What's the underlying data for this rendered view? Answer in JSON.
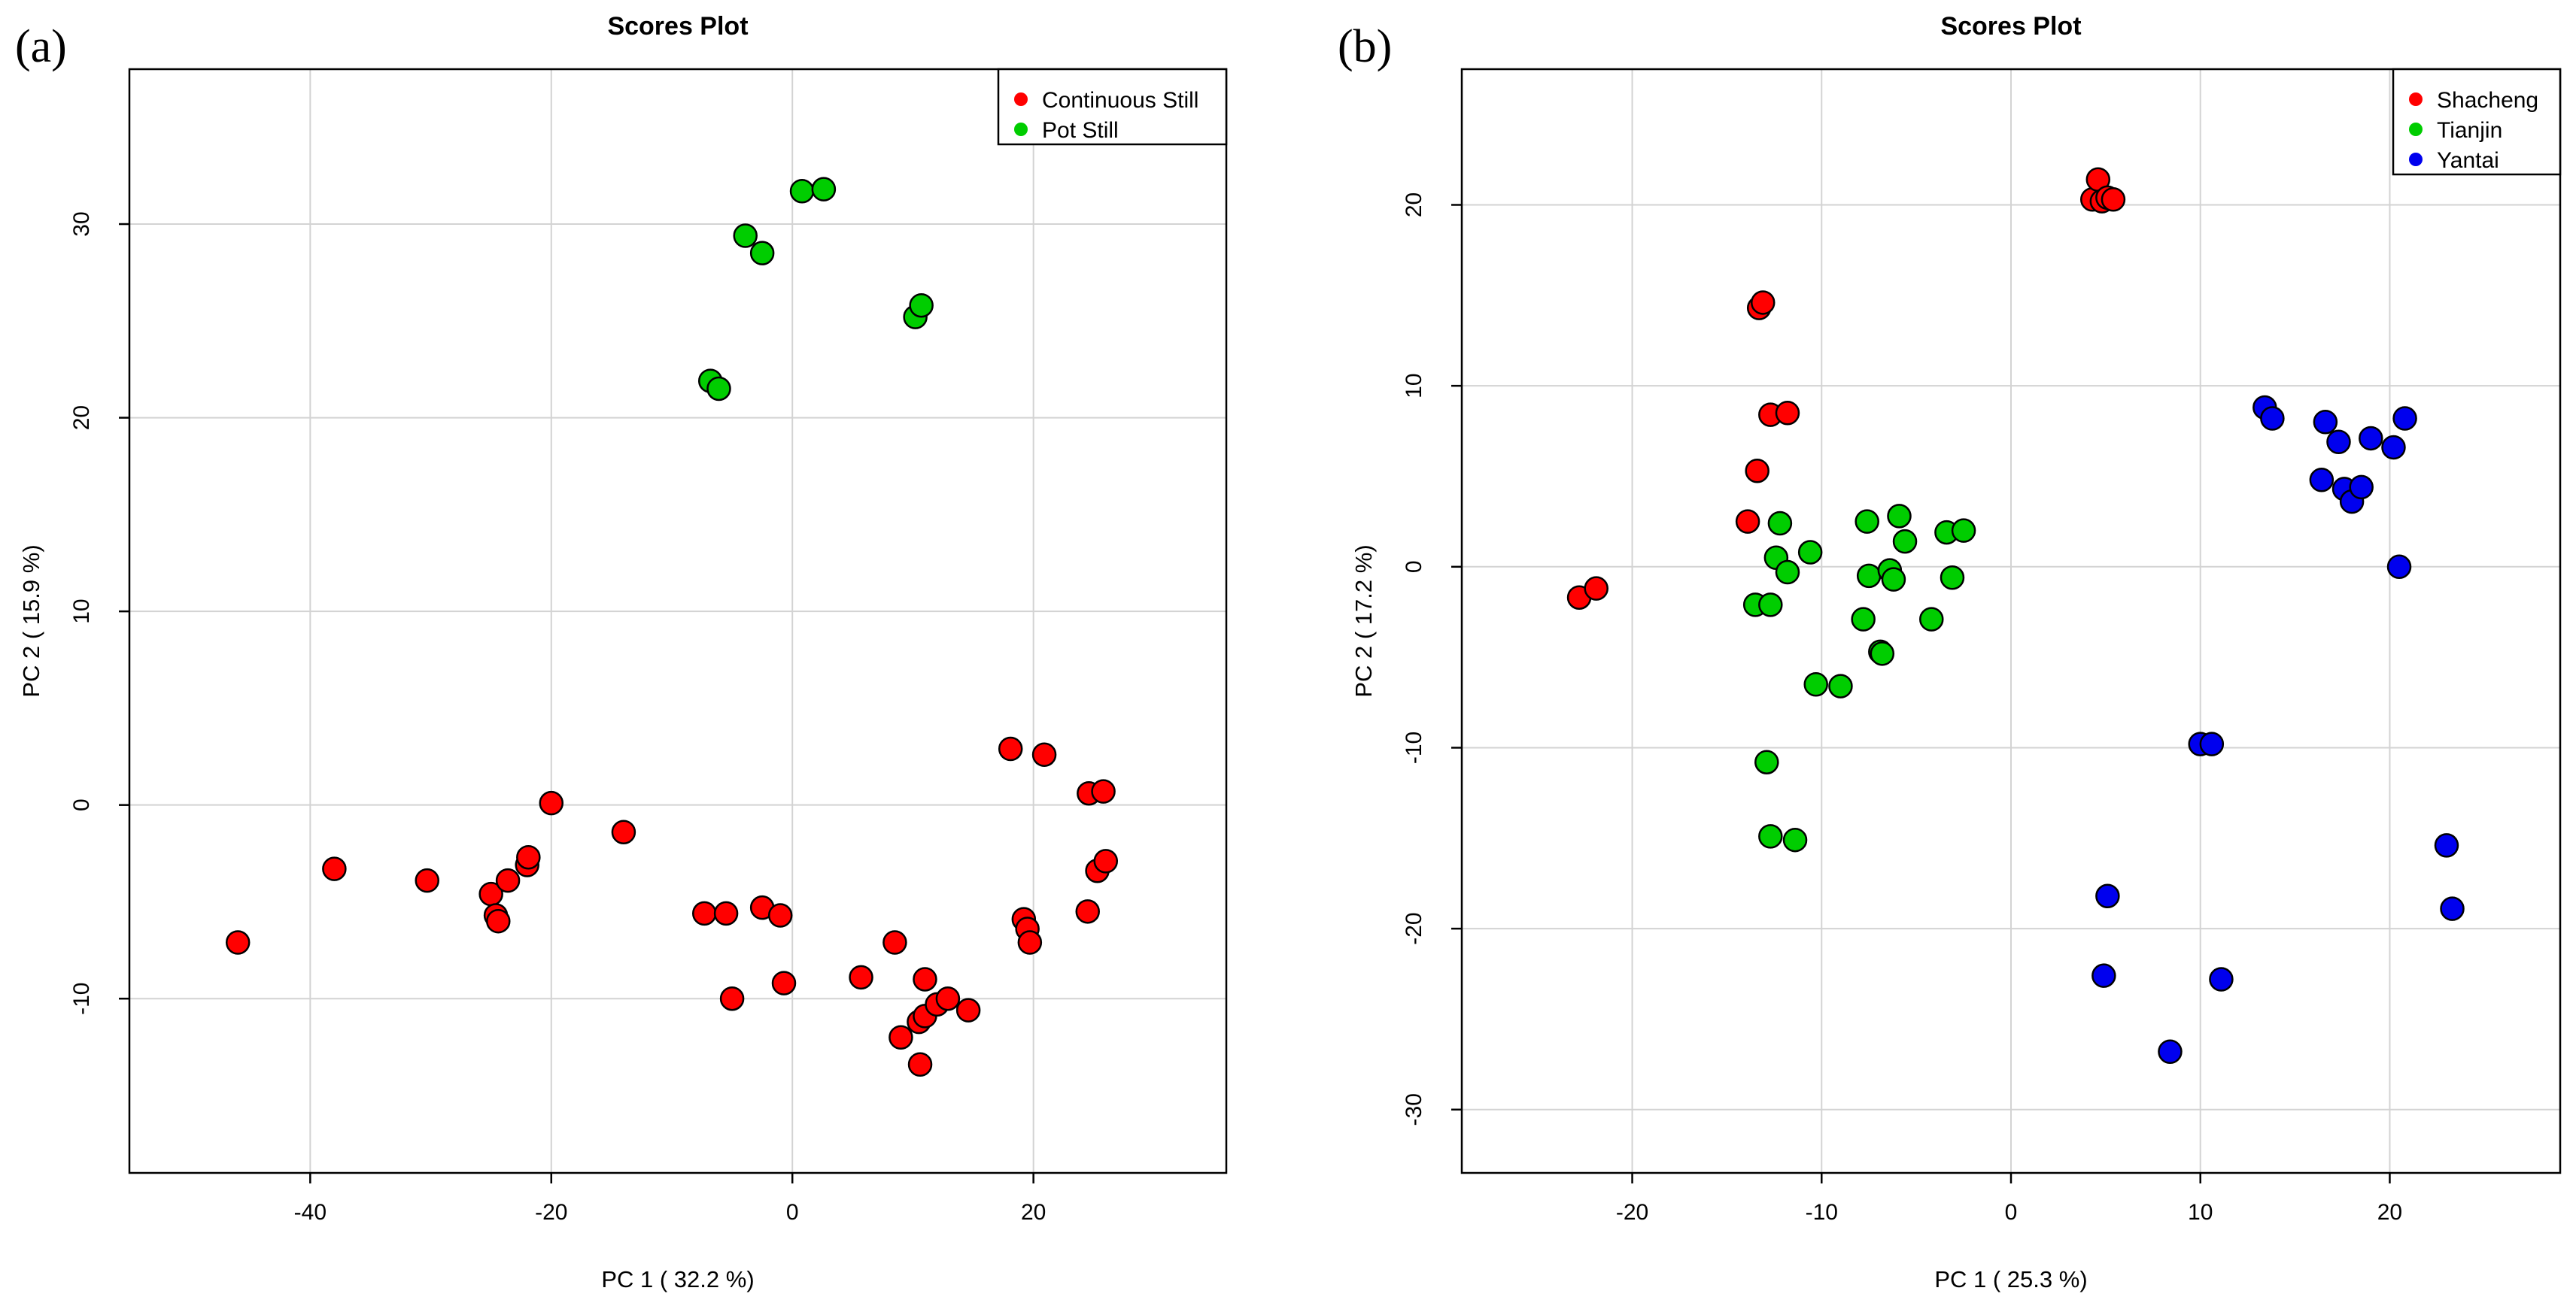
{
  "chart_data": [
    {
      "type": "scatter",
      "panel_label": "(a)",
      "title": "Scores Plot",
      "xlabel": "PC 1 ( 32.2 %)",
      "ylabel": "PC 2 ( 15.9 %)",
      "xlim": [
        -55,
        36
      ],
      "ylim": [
        -19,
        38
      ],
      "xticks": [
        -40,
        -20,
        0,
        20
      ],
      "yticks": [
        -10,
        0,
        10,
        20,
        30
      ],
      "grid": true,
      "legend_position": "top-right",
      "series": [
        {
          "name": "Continuous Still",
          "color": "#ff0000",
          "points": [
            [
              -46,
              -7.1
            ],
            [
              -38,
              -3.3
            ],
            [
              -30.3,
              -3.9
            ],
            [
              -25,
              -4.6
            ],
            [
              -24.6,
              -5.7
            ],
            [
              -24.4,
              -6
            ],
            [
              -23.6,
              -3.9
            ],
            [
              -22,
              -3.1
            ],
            [
              -21.9,
              -2.7
            ],
            [
              -20,
              0.1
            ],
            [
              -14,
              -1.4
            ],
            [
              -7.3,
              -5.6
            ],
            [
              -5.5,
              -5.6
            ],
            [
              -5,
              -10
            ],
            [
              -2.5,
              -5.3
            ],
            [
              -1,
              -5.7
            ],
            [
              -0.7,
              -9.2
            ],
            [
              5.7,
              -8.9
            ],
            [
              8.5,
              -7.1
            ],
            [
              9,
              -12
            ],
            [
              10.5,
              -11.2
            ],
            [
              11,
              -9
            ],
            [
              11,
              -10.9
            ],
            [
              12,
              -10.3
            ],
            [
              12.9,
              -10
            ],
            [
              14.6,
              -10.6
            ],
            [
              18.1,
              2.9
            ],
            [
              19.2,
              -5.9
            ],
            [
              19.5,
              -6.4
            ],
            [
              19.7,
              -7.1
            ],
            [
              20.9,
              2.6
            ],
            [
              24.5,
              -5.5
            ],
            [
              24.6,
              0.6
            ],
            [
              25.3,
              -3.4
            ],
            [
              25.8,
              0.7
            ],
            [
              26,
              -2.9
            ],
            [
              10.6,
              -13.4
            ]
          ]
        },
        {
          "name": "Pot Still",
          "color": "#00cd00",
          "points": [
            [
              -6.8,
              21.9
            ],
            [
              -6.1,
              21.5
            ],
            [
              -3.9,
              29.4
            ],
            [
              -2.5,
              28.5
            ],
            [
              0.8,
              31.7
            ],
            [
              2.6,
              31.8
            ],
            [
              10.2,
              25.2
            ],
            [
              10.7,
              25.8
            ]
          ]
        }
      ]
    },
    {
      "type": "scatter",
      "panel_label": "(b)",
      "title": "Scores Plot",
      "xlabel": "PC 1 ( 25.3 %)",
      "ylabel": "PC 2 ( 17.2 %)",
      "xlim": [
        -29,
        29
      ],
      "ylim": [
        -33.5,
        27.5
      ],
      "xticks": [
        -20,
        -10,
        0,
        10,
        20
      ],
      "yticks": [
        -30,
        -20,
        -10,
        0,
        10,
        20
      ],
      "grid": true,
      "legend_position": "top-right",
      "series": [
        {
          "name": "Shacheng",
          "color": "#ff0000",
          "points": [
            [
              -22.8,
              -1.7
            ],
            [
              -21.9,
              -1.2
            ],
            [
              -13.9,
              2.5
            ],
            [
              -13.4,
              5.3
            ],
            [
              -13.3,
              14.3
            ],
            [
              -13.1,
              14.6
            ],
            [
              -12.7,
              8.4
            ],
            [
              -11.8,
              8.5
            ],
            [
              4.3,
              20.3
            ],
            [
              4.6,
              21.4
            ],
            [
              4.8,
              20.2
            ],
            [
              5.1,
              20.4
            ],
            [
              5.4,
              20.3
            ]
          ]
        },
        {
          "name": "Tianjin",
          "color": "#00cd00",
          "points": [
            [
              -13.5,
              -2.1
            ],
            [
              -12.9,
              -10.8
            ],
            [
              -12.7,
              -14.9
            ],
            [
              -12.7,
              -2.1
            ],
            [
              -12.4,
              0.5
            ],
            [
              -12.2,
              2.4
            ],
            [
              -11.8,
              -0.3
            ],
            [
              -11.4,
              -15.1
            ],
            [
              -10.6,
              0.8
            ],
            [
              -10.3,
              -6.5
            ],
            [
              -9,
              -6.6
            ],
            [
              -7.8,
              -2.9
            ],
            [
              -7.6,
              2.5
            ],
            [
              -7.5,
              -0.5
            ],
            [
              -6.9,
              -4.7
            ],
            [
              -6.8,
              -4.8
            ],
            [
              -6.4,
              -0.2
            ],
            [
              -6.2,
              -0.7
            ],
            [
              -5.9,
              2.8
            ],
            [
              -5.6,
              1.4
            ],
            [
              -4.2,
              -2.9
            ],
            [
              -3.4,
              1.9
            ],
            [
              -3.1,
              -0.6
            ],
            [
              -2.5,
              2
            ]
          ]
        },
        {
          "name": "Yantai",
          "color": "#0000ee",
          "points": [
            [
              4.9,
              -22.6
            ],
            [
              5.1,
              -18.2
            ],
            [
              8.4,
              -26.8
            ],
            [
              10,
              -9.8
            ],
            [
              10.6,
              -9.8
            ],
            [
              11.1,
              -22.8
            ],
            [
              13.4,
              8.8
            ],
            [
              13.8,
              8.2
            ],
            [
              16.4,
              4.8
            ],
            [
              16.6,
              8
            ],
            [
              17.3,
              6.9
            ],
            [
              17.6,
              4.3
            ],
            [
              18,
              3.6
            ],
            [
              18.5,
              4.4
            ],
            [
              19,
              7.1
            ],
            [
              20.2,
              6.6
            ],
            [
              20.5,
              0
            ],
            [
              20.8,
              8.2
            ],
            [
              23,
              -15.4
            ],
            [
              23.3,
              -18.9
            ]
          ]
        }
      ]
    }
  ]
}
